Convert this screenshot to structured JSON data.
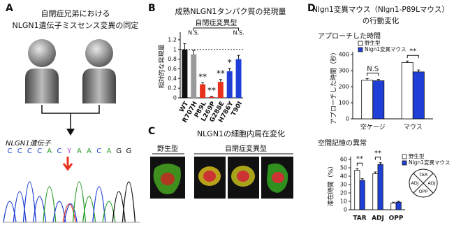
{
  "panels": {
    "a": {
      "label": "A",
      "title": [
        "自閉症兄弟における",
        "NLGN1遺伝子ミスセンス変異の同定"
      ],
      "gene_label": "NLGN1遺伝子",
      "sequence": [
        "C",
        "C",
        "C",
        "C",
        "A",
        "C",
        "Y",
        "A",
        "A",
        "C",
        "A",
        "G",
        "G"
      ]
    },
    "b": {
      "label": "B"
    },
    "c": {
      "label": "C",
      "title": "NLGN1の細胞内局在変化",
      "groups": [
        "野生型",
        "自閉症変異型"
      ]
    },
    "d": {
      "label": "D",
      "title": [
        "Nlgn1変異マウス（Nlgn1-P89Lマウス）",
        "の行動変化"
      ]
    }
  },
  "chart_data": [
    {
      "type": "bar",
      "title": "成熟NLGN1タンパク質の発現量",
      "ylabel": "相対的な発現量",
      "group_label": "自閉症変異型",
      "categories": [
        "WT",
        "R707H",
        "P89L",
        "L269P",
        "G288E",
        "H786Y",
        "T90I"
      ],
      "values": [
        1.0,
        0.9,
        0.28,
        0.02,
        0.33,
        0.55,
        0.8
      ],
      "errors": [
        0.12,
        0.08,
        0.03,
        0.01,
        0.05,
        0.06,
        0.08
      ],
      "colors": [
        "#111111",
        "#9a9a9a",
        "#e8301c",
        "#e8301c",
        "#e8301c",
        "#1f3fd6",
        "#1f3fd6"
      ],
      "significance": [
        null,
        "N.S.",
        "**",
        "**",
        "**",
        "*",
        "N.S."
      ],
      "reference_line": 1,
      "ylim": [
        0,
        1.3
      ],
      "yticks": [
        0,
        0.2,
        0.4,
        0.6,
        0.8,
        1,
        1.2
      ]
    },
    {
      "type": "grouped_bar",
      "title": "アプローチした時間",
      "ylabel": "アプローチした時間（秒）",
      "categories": [
        "空ケージ",
        "マウス"
      ],
      "series": [
        {
          "name": "野生型",
          "color": "#ffffff",
          "values": [
            240,
            350
          ],
          "errors": [
            10,
            10
          ]
        },
        {
          "name": "Nlgn1変異マウス",
          "color": "#1f3fd6",
          "values": [
            237,
            292
          ],
          "errors": [
            8,
            12
          ]
        }
      ],
      "significance": [
        "N.S",
        "**"
      ],
      "legend": "top-left",
      "ylim": [
        0,
        400
      ],
      "yticks": [
        0,
        100,
        200,
        300,
        400
      ]
    },
    {
      "type": "grouped_bar",
      "title": "空間記憶の異常",
      "ylabel": "滞在時間（%）",
      "categories": [
        "TAR",
        "ADJ",
        "OPP"
      ],
      "series": [
        {
          "name": "野生型",
          "color": "#ffffff",
          "values": [
            47,
            43,
            8
          ],
          "errors": [
            2,
            2,
            1
          ]
        },
        {
          "name": "Nlgn1変異マウス",
          "color": "#1f3fd6",
          "values": [
            35,
            54,
            9
          ],
          "errors": [
            2,
            2,
            1
          ]
        }
      ],
      "significance": [
        "**",
        "**",
        null
      ],
      "legend": "top-right",
      "maze_labels": [
        "TAR",
        "ADJ",
        "ADJ",
        "OPP"
      ],
      "ylim": [
        0,
        60
      ],
      "yticks": [
        0,
        10,
        20,
        30,
        40,
        50,
        60
      ]
    }
  ]
}
